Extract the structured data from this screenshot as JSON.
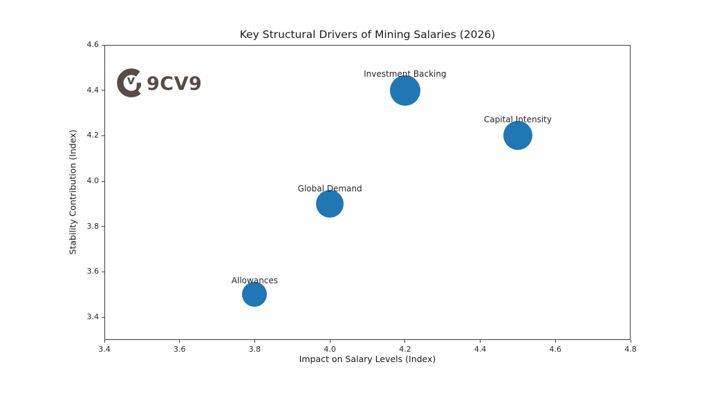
{
  "watermark": {
    "brand": "9CV9"
  },
  "chart_data": {
    "type": "scatter",
    "title": "Key Structural Drivers of Mining Salaries (2026)",
    "xlabel": "Impact on Salary Levels (Index)",
    "ylabel": "Stability Contribution (Index)",
    "xlim": [
      3.4,
      4.8
    ],
    "ylim": [
      3.3,
      4.6
    ],
    "xticks": [
      "3.4",
      "3.6",
      "3.8",
      "4.0",
      "4.2",
      "4.4",
      "4.6",
      "4.8"
    ],
    "yticks": [
      "3.4",
      "3.6",
      "3.8",
      "4.0",
      "4.2",
      "4.4",
      "4.6"
    ],
    "grid": false,
    "legend": "none",
    "marker_color": "#1f77b4",
    "points": [
      {
        "label": "Allowances",
        "x": 3.8,
        "y": 3.5,
        "radius_px": 18
      },
      {
        "label": "Global Demand",
        "x": 4.0,
        "y": 3.9,
        "radius_px": 20
      },
      {
        "label": "Investment Backing",
        "x": 4.2,
        "y": 4.4,
        "radius_px": 22
      },
      {
        "label": "Capital Intensity",
        "x": 4.5,
        "y": 4.2,
        "radius_px": 21
      }
    ]
  },
  "logo_color": "#564b46"
}
